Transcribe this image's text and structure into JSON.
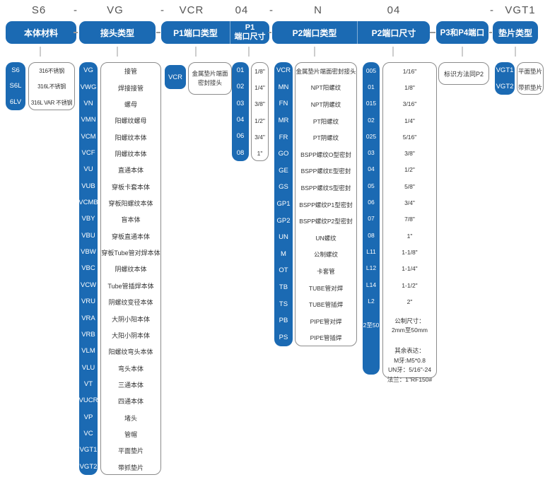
{
  "accent_color": "#1b6ab3",
  "part_code": [
    "S6",
    "-",
    "VG",
    "-",
    "VCR",
    "04",
    "-",
    "N",
    "04",
    "-",
    "VGT1"
  ],
  "columns": [
    {
      "key": "body-material",
      "header": "本体材料",
      "rows": [
        {
          "code": "S6",
          "value": "316不锈钢"
        },
        {
          "code": "S6L",
          "value": "316L不锈钢"
        },
        {
          "code": "6LV",
          "value": "316L VAR 不锈钢"
        }
      ]
    },
    {
      "key": "connector-type",
      "header": "接头类型",
      "rows": [
        {
          "code": "VG",
          "value": "接管"
        },
        {
          "code": "VWG",
          "value": "焊接接管"
        },
        {
          "code": "VN",
          "value": "螺母"
        },
        {
          "code": "VMN",
          "value": "阳螺纹螺母"
        },
        {
          "code": "VCM",
          "value": "阳螺纹本体"
        },
        {
          "code": "VCF",
          "value": "阴螺纹本体"
        },
        {
          "code": "VU",
          "value": "直通本体"
        },
        {
          "code": "VUB",
          "value": "穿板卡套本体"
        },
        {
          "code": "VCMB",
          "value": "穿板阳螺纹本体"
        },
        {
          "code": "VBY",
          "value": "盲本体"
        },
        {
          "code": "VBU",
          "value": "穿板直通本体"
        },
        {
          "code": "VBW",
          "value": "穿板Tube管对焊本体"
        },
        {
          "code": "VBC",
          "value": "阴螺纹本体"
        },
        {
          "code": "VCW",
          "value": "Tube管插焊本体"
        },
        {
          "code": "VRU",
          "value": "阴螺纹变径本体"
        },
        {
          "code": "VRA",
          "value": "大阴小阳本体"
        },
        {
          "code": "VRB",
          "value": "大阳小阴本体"
        },
        {
          "code": "VLM",
          "value": "阳螺纹弯头本体"
        },
        {
          "code": "VLU",
          "value": "弯头本体"
        },
        {
          "code": "VT",
          "value": "三通本体"
        },
        {
          "code": "VUCR",
          "value": "四通本体"
        },
        {
          "code": "VP",
          "value": "堵头"
        },
        {
          "code": "VC",
          "value": "管帽"
        },
        {
          "code": "VGT1",
          "value": "平面垫片"
        },
        {
          "code": "VGT2",
          "value": "带抓垫片"
        }
      ]
    },
    {
      "key": "p1-port-type",
      "header": "P1端口类型",
      "rows": [
        {
          "code": "VCR",
          "value": "金属垫片端面密封接头",
          "lines": [
            "金属垫片端面",
            "密封接头"
          ]
        }
      ]
    },
    {
      "key": "p1-port-size",
      "header": "P1端口尺寸",
      "header_lines": [
        "P1",
        "端口尺寸"
      ],
      "rows": [
        {
          "code": "01",
          "value": "1/8\""
        },
        {
          "code": "02",
          "value": "1/4\""
        },
        {
          "code": "03",
          "value": "3/8\""
        },
        {
          "code": "04",
          "value": "1/2\""
        },
        {
          "code": "06",
          "value": "3/4\""
        },
        {
          "code": "08",
          "value": "1\""
        }
      ]
    },
    {
      "key": "p2-port-type",
      "header": "P2端口类型",
      "rows": [
        {
          "code": "VCR",
          "value": "金属垫片端面密封接头"
        },
        {
          "code": "MN",
          "value": "NPT阳螺纹"
        },
        {
          "code": "FN",
          "value": "NPT阴螺纹"
        },
        {
          "code": "MR",
          "value": "PT阳螺纹"
        },
        {
          "code": "FR",
          "value": "PT阴螺纹"
        },
        {
          "code": "GO",
          "value": "BSPP螺纹O型密封"
        },
        {
          "code": "GE",
          "value": "BSPP螺纹E型密封"
        },
        {
          "code": "GS",
          "value": "BSPP螺纹S型密封"
        },
        {
          "code": "GP1",
          "value": "BSPP螺纹P1型密封"
        },
        {
          "code": "GP2",
          "value": "BSPP螺纹P2型密封"
        },
        {
          "code": "UN",
          "value": "UN螺纹"
        },
        {
          "code": "M",
          "value": "公制螺纹"
        },
        {
          "code": "OT",
          "value": "卡套管"
        },
        {
          "code": "TB",
          "value": "TUBE管对焊"
        },
        {
          "code": "TS",
          "value": "TUBE管插焊"
        },
        {
          "code": "PB",
          "value": "PIPE管对焊"
        },
        {
          "code": "PS",
          "value": "PIPE管插焊"
        }
      ]
    },
    {
      "key": "p2-port-size",
      "header": "P2端口尺寸",
      "rows": [
        {
          "code": "005",
          "value": "1/16\""
        },
        {
          "code": "01",
          "value": "1/8\""
        },
        {
          "code": "015",
          "value": "3/16\""
        },
        {
          "code": "02",
          "value": "1/4\""
        },
        {
          "code": "025",
          "value": "5/16\""
        },
        {
          "code": "03",
          "value": "3/8\""
        },
        {
          "code": "04",
          "value": "1/2\""
        },
        {
          "code": "05",
          "value": "5/8\""
        },
        {
          "code": "06",
          "value": "3/4\""
        },
        {
          "code": "07",
          "value": "7/8\""
        },
        {
          "code": "08",
          "value": "1\""
        },
        {
          "code": "L11",
          "value": "1-1/8\""
        },
        {
          "code": "L12",
          "value": "1-1/4\""
        },
        {
          "code": "L14",
          "value": "1-1/2\""
        },
        {
          "code": "L2",
          "value": "2\""
        },
        {
          "code": "2至50",
          "value": "公制尺寸：2mm至50mm",
          "lines": [
            "公制尺寸：",
            "2mm至50mm"
          ],
          "tall": true
        }
      ],
      "note": [
        "其余表达：",
        "M牙:M5*0.8",
        "UN牙：5/16\"-24",
        "法兰：1\"RF150#"
      ]
    },
    {
      "key": "p3-p4-port",
      "header": "P3和P4端口",
      "info": "标识方法同P2"
    },
    {
      "key": "gasket-type",
      "header": "垫片类型",
      "rows": [
        {
          "code": "VGT1",
          "value": "平面垫片"
        },
        {
          "code": "VGT2",
          "value": "带抓垫片"
        }
      ]
    }
  ]
}
